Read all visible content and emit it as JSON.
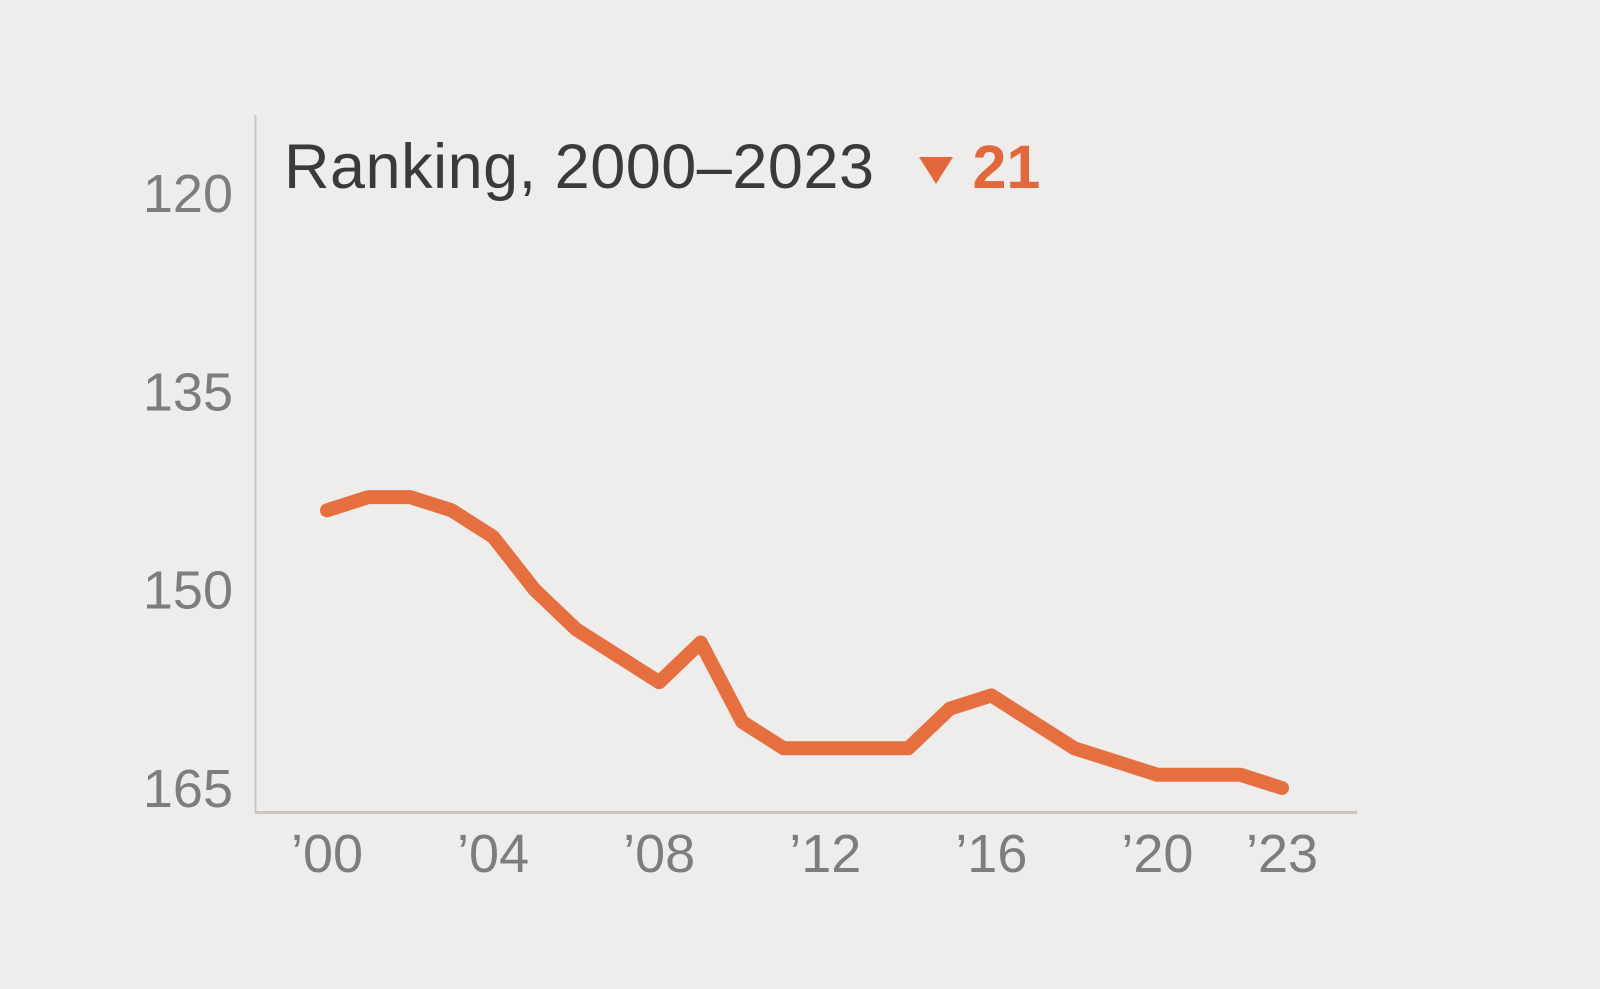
{
  "header": {
    "title": "Ranking, 2000–2023",
    "change_direction": "down",
    "change_value": "21"
  },
  "chart_data": {
    "type": "line",
    "title": "Ranking, 2000–2023",
    "series_name": "Ranking",
    "x": [
      2000,
      2001,
      2002,
      2003,
      2004,
      2005,
      2006,
      2007,
      2008,
      2009,
      2010,
      2011,
      2012,
      2013,
      2014,
      2015,
      2016,
      2017,
      2018,
      2019,
      2020,
      2021,
      2022,
      2023
    ],
    "values": [
      144,
      143,
      143,
      144,
      146,
      150,
      153,
      155,
      157,
      154,
      160,
      162,
      162,
      162,
      162,
      159,
      158,
      160,
      162,
      163,
      164,
      164,
      164,
      165
    ],
    "xlabel": "",
    "ylabel": "",
    "y_axis_inverted": true,
    "ylim": [
      114,
      167
    ],
    "y_ticks": [
      120,
      135,
      150,
      165
    ],
    "x_ticks": [
      {
        "year": 2000,
        "label": "’00"
      },
      {
        "year": 2004,
        "label": "’04"
      },
      {
        "year": 2008,
        "label": "’08"
      },
      {
        "year": 2012,
        "label": "’12"
      },
      {
        "year": 2016,
        "label": "’16"
      },
      {
        "year": 2020,
        "label": "’20"
      },
      {
        "year": 2023,
        "label": "’23"
      }
    ],
    "grid": false,
    "legend_position": "none",
    "change_annotation": {
      "direction": "down",
      "value": 21
    }
  },
  "colors": {
    "background": "#EFEDEC",
    "line": "#E56F3E",
    "accent_text": "#E2683B",
    "title_text": "#3A3A3C",
    "tick_text": "#7B7D7F",
    "axis_line": "#C8C5C3"
  }
}
